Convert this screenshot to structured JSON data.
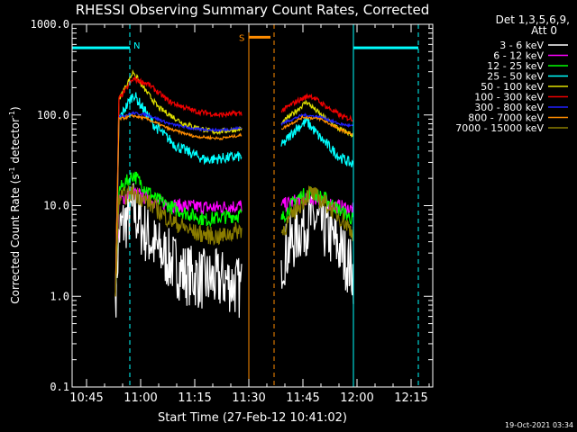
{
  "chart_data": {
    "type": "line",
    "title": "RHESSI Observing Summary Count Rates, Corrected",
    "xlabel": "Start Time (27-Feb-12 10:41:02)",
    "ylabel": "Corrected Count Rate (s⁻¹ detector⁻¹)",
    "ylabel_parts": {
      "main": "Corrected Count Rate (s",
      "sup1": "-1",
      "mid": " detector",
      "sup2": "-1",
      "end": ")"
    },
    "yscale": "log",
    "ylim": [
      0.1,
      1000
    ],
    "xlim": [
      "10:41",
      "12:21"
    ],
    "x_ticks": [
      "10:45",
      "11:00",
      "11:15",
      "11:30",
      "11:45",
      "12:00",
      "12:15"
    ],
    "y_ticks": [
      "0.1",
      "1.0",
      "10.0",
      "100.0",
      "1000.0"
    ],
    "legend_title_line1": "Det 1,3,5,6,9,",
    "legend_title_line2": "Att 0",
    "legend_placement": "right",
    "timestamp": "19-Oct-2021 03:34",
    "annotations": {
      "night_marker": "N",
      "saa_marker": "S"
    },
    "series": [
      {
        "name": "3 - 6 keV",
        "color": "#ffffff"
      },
      {
        "name": "6 - 12 keV",
        "color": "#ff00ff"
      },
      {
        "name": "12 - 25 keV",
        "color": "#00ff00"
      },
      {
        "name": "25 - 50 keV",
        "color": "#00ffff"
      },
      {
        "name": "50 - 100 keV",
        "color": "#e0e000"
      },
      {
        "name": "100 - 300 keV",
        "color": "#ee0000"
      },
      {
        "name": "300 - 800 keV",
        "color": "#2020ff"
      },
      {
        "name": "800 - 7000 keV",
        "color": "#ff8c00"
      },
      {
        "name": "7000 - 15000 keV",
        "color": "#8b7d00"
      }
    ],
    "series_profiles": [
      {
        "name": "3 - 6 keV",
        "seg1": [
          [
            "10:53",
            1.0
          ],
          [
            "10:54",
            5
          ],
          [
            "10:56",
            7
          ],
          [
            "10:58",
            9
          ],
          [
            "11:00",
            6
          ],
          [
            "11:04",
            3.5
          ],
          [
            "11:08",
            2.5
          ],
          [
            "11:12",
            1.8
          ],
          [
            "11:18",
            1.5
          ],
          [
            "11:24",
            1.5
          ],
          [
            "11:28",
            1.2
          ]
        ],
        "seg2": [
          [
            "11:39",
            2.5
          ],
          [
            "11:42",
            4
          ],
          [
            "11:45",
            6
          ],
          [
            "11:48",
            7
          ],
          [
            "11:52",
            5
          ],
          [
            "11:56",
            3
          ],
          [
            "11:59",
            1.8
          ]
        ],
        "noise": 0.35
      },
      {
        "name": "6 - 12 keV",
        "seg1": [
          [
            "10:53",
            1.0
          ],
          [
            "10:54",
            11
          ],
          [
            "10:57",
            14
          ],
          [
            "11:00",
            13
          ],
          [
            "11:04",
            11
          ],
          [
            "11:10",
            10
          ],
          [
            "11:20",
            9.5
          ],
          [
            "11:28",
            10
          ]
        ],
        "seg2": [
          [
            "11:39",
            10
          ],
          [
            "11:45",
            12
          ],
          [
            "11:49",
            12
          ],
          [
            "11:54",
            10
          ],
          [
            "11:59",
            9
          ]
        ],
        "noise": 0.08
      },
      {
        "name": "12 - 25 keV",
        "seg1": [
          [
            "10:53",
            1.0
          ],
          [
            "10:54",
            15
          ],
          [
            "10:58",
            22
          ],
          [
            "11:00",
            18
          ],
          [
            "11:04",
            12
          ],
          [
            "11:10",
            9
          ],
          [
            "11:18",
            7
          ],
          [
            "11:28",
            8
          ]
        ],
        "seg2": [
          [
            "11:39",
            7
          ],
          [
            "11:43",
            12
          ],
          [
            "11:47",
            14
          ],
          [
            "11:51",
            12
          ],
          [
            "11:55",
            9
          ],
          [
            "11:59",
            7
          ]
        ],
        "noise": 0.08
      },
      {
        "name": "25 - 50 keV",
        "seg1": [
          [
            "10:53",
            1.0
          ],
          [
            "10:54",
            90
          ],
          [
            "10:58",
            170
          ],
          [
            "11:00",
            130
          ],
          [
            "11:04",
            75
          ],
          [
            "11:10",
            45
          ],
          [
            "11:18",
            32
          ],
          [
            "11:28",
            35
          ]
        ],
        "seg2": [
          [
            "11:39",
            45
          ],
          [
            "11:43",
            70
          ],
          [
            "11:46",
            85
          ],
          [
            "11:50",
            55
          ],
          [
            "11:55",
            35
          ],
          [
            "11:59",
            28
          ]
        ],
        "noise": 0.06
      },
      {
        "name": "50 - 100 keV",
        "seg1": [
          [
            "10:53",
            1.0
          ],
          [
            "10:54",
            150
          ],
          [
            "10:58",
            300
          ],
          [
            "11:00",
            220
          ],
          [
            "11:05",
            120
          ],
          [
            "11:12",
            80
          ],
          [
            "11:20",
            65
          ],
          [
            "11:28",
            70
          ]
        ],
        "seg2": [
          [
            "11:39",
            80
          ],
          [
            "11:43",
            110
          ],
          [
            "11:46",
            140
          ],
          [
            "11:50",
            100
          ],
          [
            "11:55",
            70
          ],
          [
            "11:59",
            60
          ]
        ],
        "noise": 0.03
      },
      {
        "name": "100 - 300 keV",
        "seg1": [
          [
            "10:53",
            1.0
          ],
          [
            "10:54",
            150
          ],
          [
            "10:58",
            250
          ],
          [
            "11:02",
            220
          ],
          [
            "11:08",
            140
          ],
          [
            "11:15",
            110
          ],
          [
            "11:22",
            100
          ],
          [
            "11:28",
            105
          ]
        ],
        "seg2": [
          [
            "11:39",
            110
          ],
          [
            "11:43",
            140
          ],
          [
            "11:47",
            165
          ],
          [
            "11:52",
            120
          ],
          [
            "11:56",
            95
          ],
          [
            "11:59",
            90
          ]
        ],
        "noise": 0.03
      },
      {
        "name": "300 - 800 keV",
        "seg1": [
          [
            "10:53",
            1.0
          ],
          [
            "10:54",
            95
          ],
          [
            "10:58",
            105
          ],
          [
            "11:02",
            100
          ],
          [
            "11:08",
            80
          ],
          [
            "11:15",
            70
          ],
          [
            "11:22",
            68
          ],
          [
            "11:28",
            72
          ]
        ],
        "seg2": [
          [
            "11:39",
            80
          ],
          [
            "11:45",
            100
          ],
          [
            "11:50",
            95
          ],
          [
            "11:55",
            80
          ],
          [
            "11:59",
            75
          ]
        ],
        "noise": 0.015
      },
      {
        "name": "800 - 7000 keV",
        "seg1": [
          [
            "10:53",
            1.0
          ],
          [
            "10:54",
            90
          ],
          [
            "10:58",
            98
          ],
          [
            "11:02",
            90
          ],
          [
            "11:08",
            70
          ],
          [
            "11:15",
            58
          ],
          [
            "11:22",
            55
          ],
          [
            "11:28",
            60
          ]
        ],
        "seg2": [
          [
            "11:39",
            70
          ],
          [
            "11:45",
            95
          ],
          [
            "11:50",
            90
          ],
          [
            "11:55",
            70
          ],
          [
            "11:59",
            60
          ]
        ],
        "noise": 0.015
      },
      {
        "name": "7000 - 15000 keV",
        "seg1": [
          [
            "10:53",
            1.0
          ],
          [
            "10:54",
            12
          ],
          [
            "10:58",
            14
          ],
          [
            "11:02",
            11
          ],
          [
            "11:08",
            7
          ],
          [
            "11:15",
            5
          ],
          [
            "11:22",
            4.5
          ],
          [
            "11:28",
            5.5
          ]
        ],
        "seg2": [
          [
            "11:39",
            5
          ],
          [
            "11:43",
            9
          ],
          [
            "11:47",
            14
          ],
          [
            "11:52",
            10
          ],
          [
            "11:56",
            7
          ],
          [
            "11:59",
            5
          ]
        ],
        "noise": 0.1
      }
    ],
    "night_intervals": [
      [
        "10:41",
        "10:57"
      ],
      [
        "11:59",
        "12:17"
      ]
    ],
    "night_level": 550,
    "saa_interval": [
      "11:30",
      "11:36"
    ],
    "saa_level": 720,
    "vlines": [
      {
        "time": "10:41",
        "color": "#00ffff",
        "style": "solid"
      },
      {
        "time": "10:57",
        "color": "#00ffff",
        "style": "dashed"
      },
      {
        "time": "11:30",
        "color": "#ff8c00",
        "style": "solid"
      },
      {
        "time": "11:37",
        "color": "#ff8c00",
        "style": "dashed"
      },
      {
        "time": "11:59",
        "color": "#00ffff",
        "style": "solid"
      },
      {
        "time": "12:17",
        "color": "#00ffff",
        "style": "dashed"
      }
    ]
  }
}
